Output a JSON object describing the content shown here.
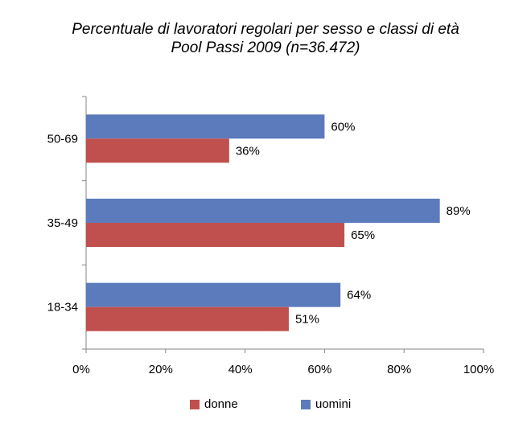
{
  "chart_data": {
    "type": "bar",
    "orientation": "horizontal",
    "title": "Percentuale di lavoratori regolari per sesso e classi di età",
    "subtitle": "Pool Passi 2009 (n=36.472)",
    "categories": [
      "50-69",
      "35-49",
      "18-34"
    ],
    "series": [
      {
        "name": "uomini",
        "values": [
          60,
          89,
          64
        ],
        "labels": [
          "60%",
          "89%",
          "64%"
        ],
        "color": "#5b7bbd"
      },
      {
        "name": "donne",
        "values": [
          36,
          65,
          51
        ],
        "labels": [
          "36%",
          "65%",
          "51%"
        ],
        "color": "#c0504d"
      }
    ],
    "xlim": [
      0,
      100
    ],
    "xticks": [
      0,
      20,
      40,
      60,
      80,
      100
    ],
    "xtick_labels": [
      "0%",
      "20%",
      "40%",
      "60%",
      "80%",
      "100%"
    ],
    "grid": false,
    "legend": {
      "position": "bottom",
      "items": [
        {
          "name": "donne",
          "color": "#c0504d"
        },
        {
          "name": "uomini",
          "color": "#5b7bbd"
        }
      ]
    }
  }
}
